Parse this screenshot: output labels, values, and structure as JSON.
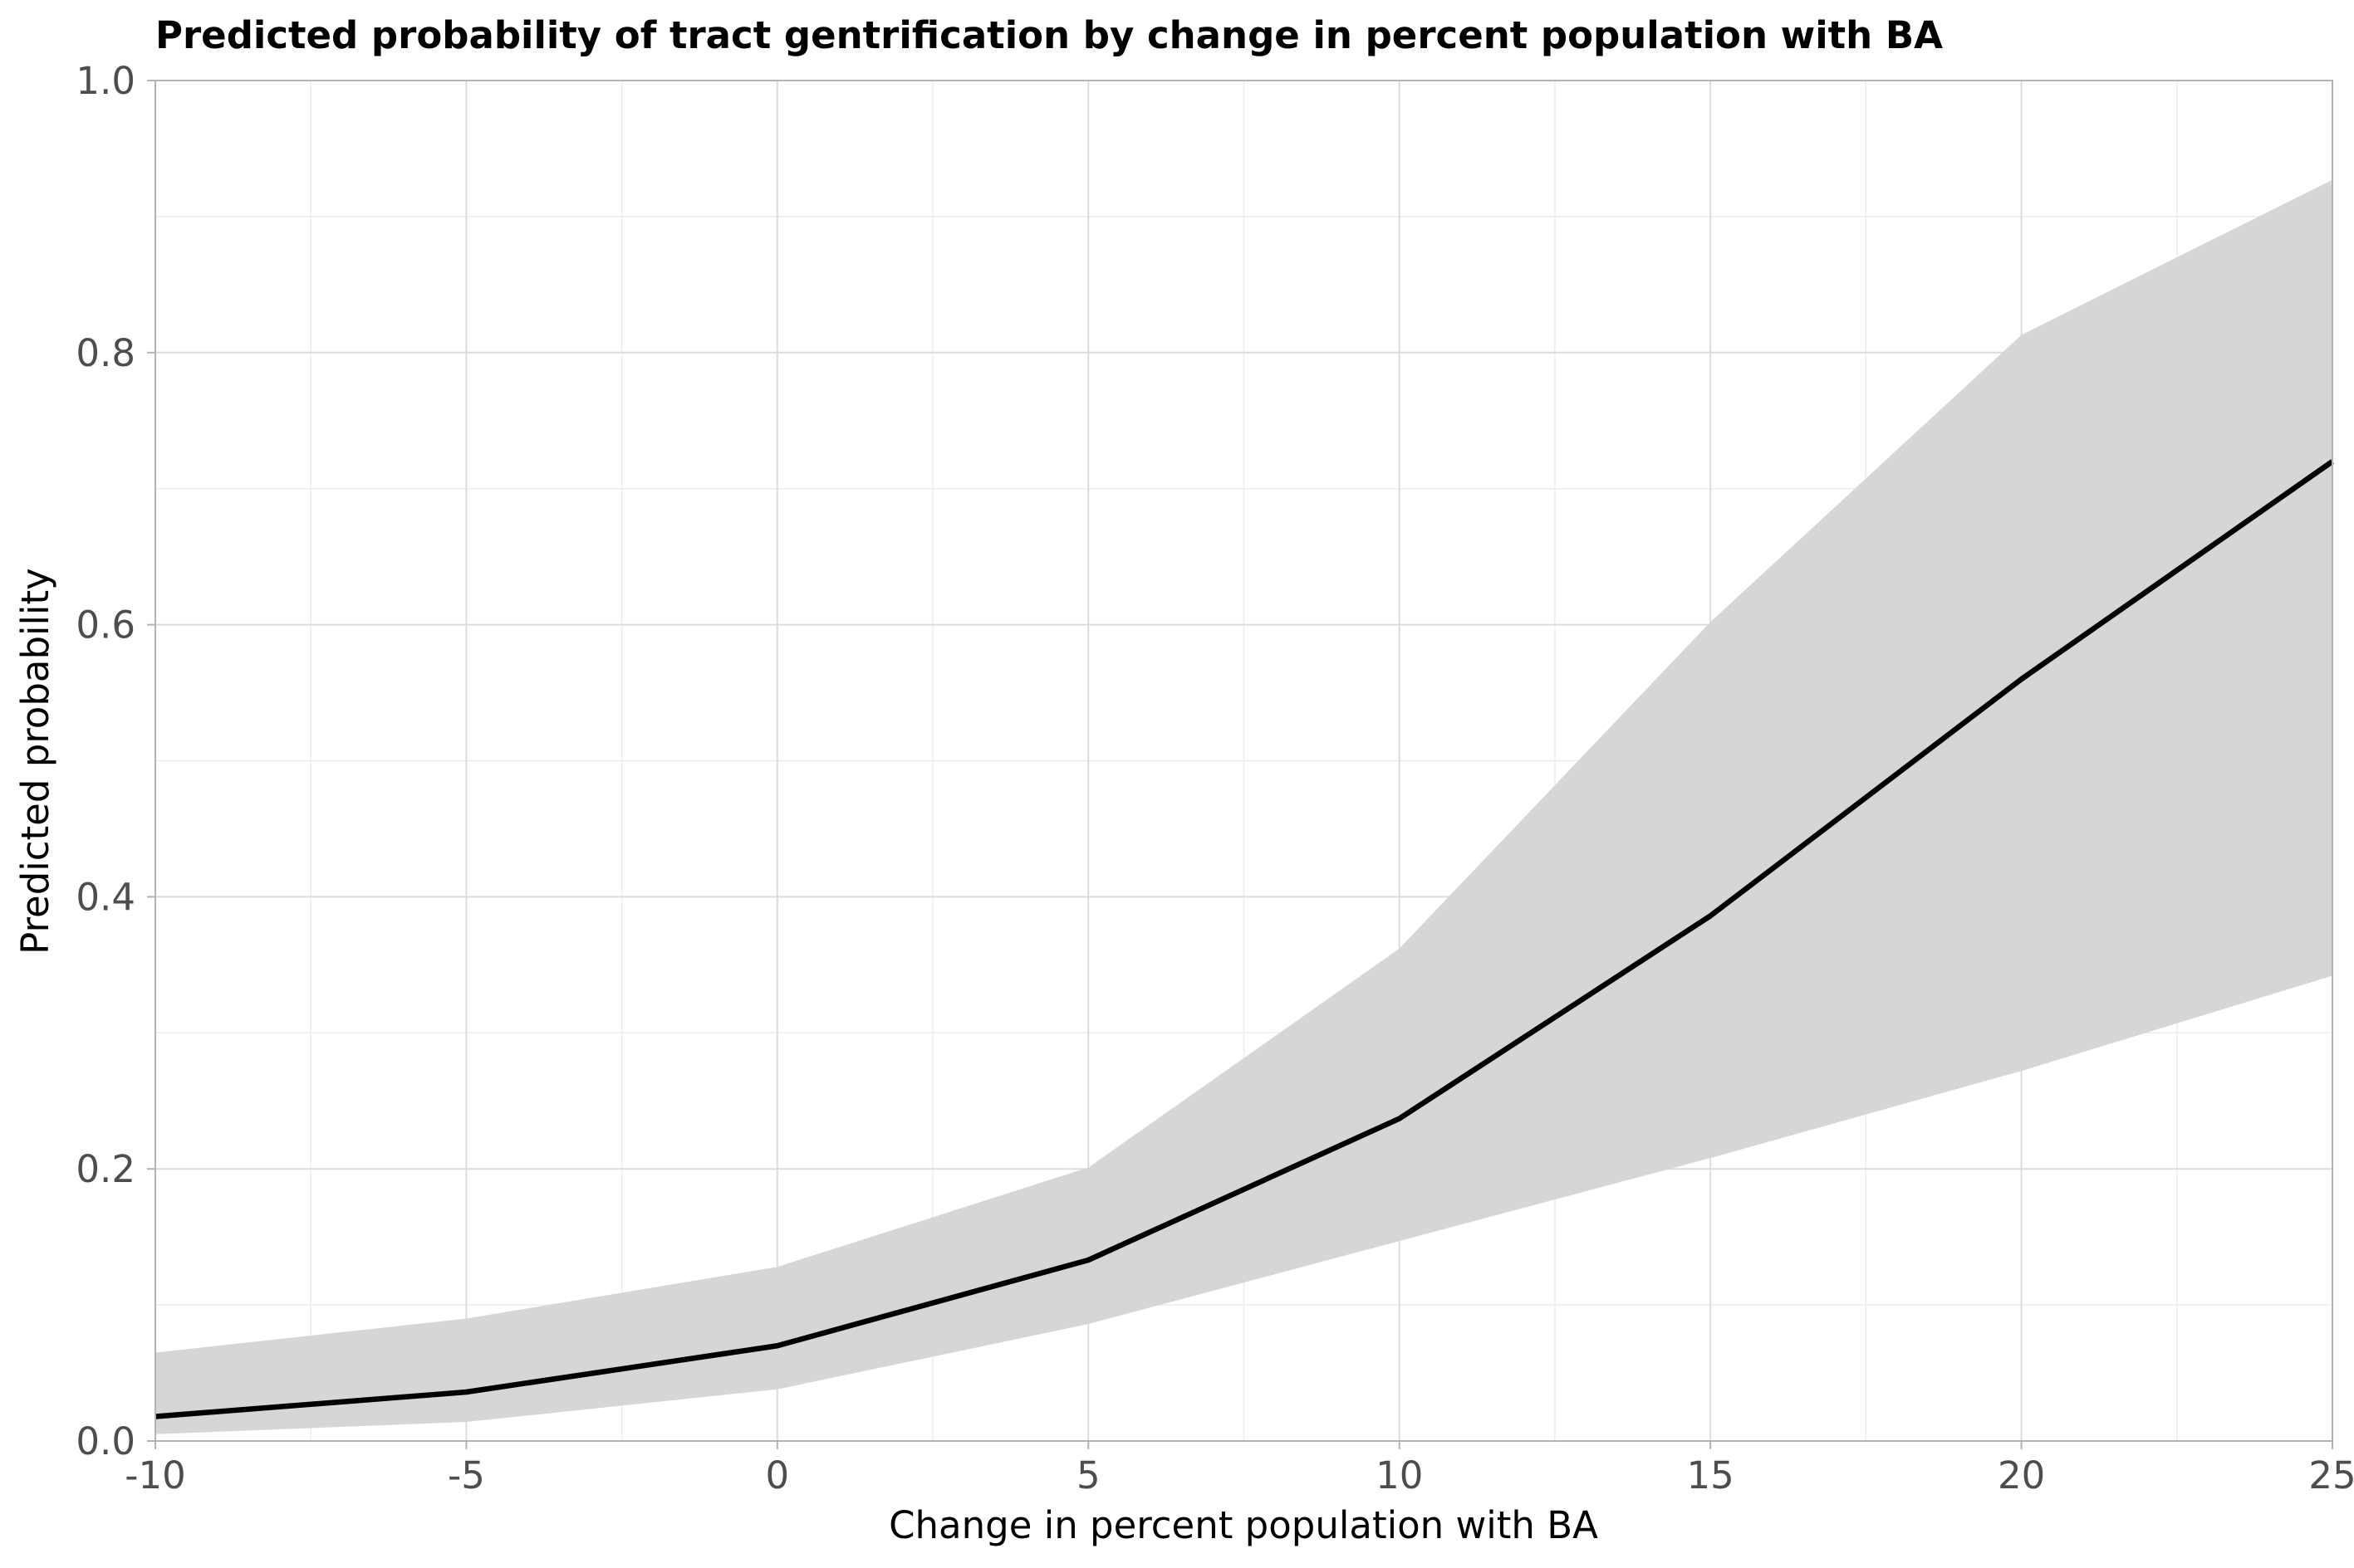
{
  "chart_data": {
    "type": "line",
    "title": "Predicted probability of tract gentrification by change in percent population with BA",
    "xlabel": "Change in percent population with BA",
    "ylabel": "Predicted probability",
    "xlim": [
      -10,
      25
    ],
    "ylim": [
      0.0,
      1.0
    ],
    "x_ticks": [
      -10,
      -5,
      0,
      5,
      10,
      15,
      20,
      25
    ],
    "x_tick_labels": [
      "-10",
      "-5",
      "0",
      "5",
      "10",
      "15",
      "20",
      "25"
    ],
    "y_ticks": [
      0.0,
      0.2,
      0.4,
      0.6,
      0.8,
      1.0
    ],
    "y_tick_labels": [
      "0.0",
      "0.2",
      "0.4",
      "0.6",
      "0.8",
      "1.0"
    ],
    "grid": true,
    "legend": "none",
    "series": [
      {
        "x": [
          -10,
          -5,
          0,
          5,
          10,
          15,
          20,
          25
        ],
        "y": [
          0.018,
          0.036,
          0.07,
          0.133,
          0.237,
          0.386,
          0.56,
          0.72
        ],
        "lower": [
          0.005,
          0.014,
          0.038,
          0.086,
          0.147,
          0.208,
          0.272,
          0.342
        ],
        "upper": [
          0.065,
          0.09,
          0.128,
          0.201,
          0.362,
          0.602,
          0.813,
          0.927
        ],
        "color": "#000000",
        "band_color": "#d6d6d6"
      }
    ]
  }
}
